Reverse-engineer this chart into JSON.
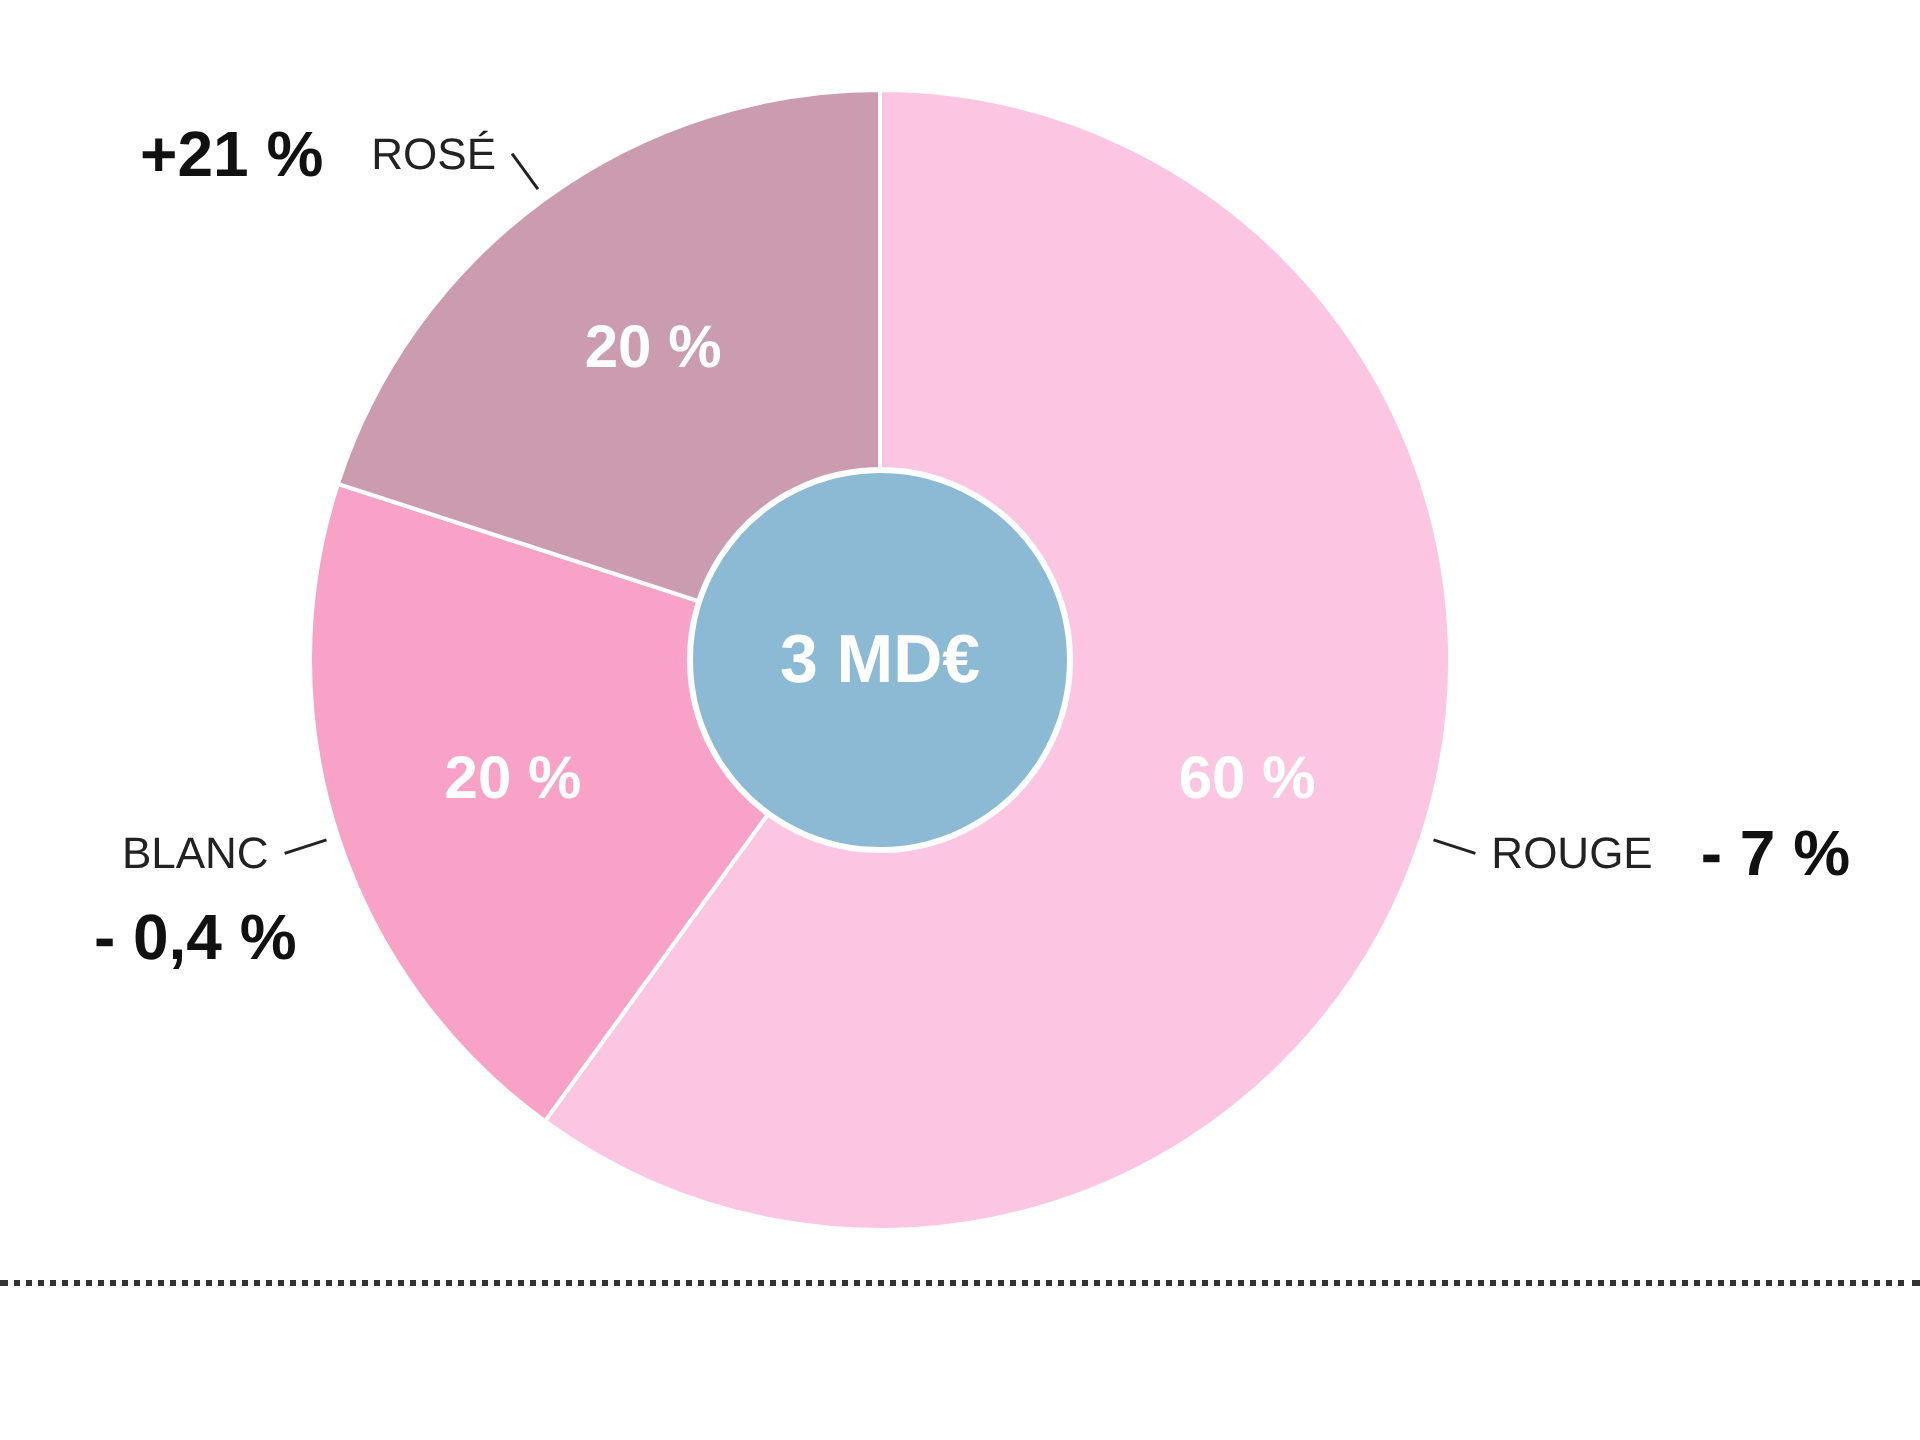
{
  "chart_data": {
    "type": "donut",
    "categories": [
      "ROUGE",
      "BLANC",
      "ROSÉ"
    ],
    "values": [
      60,
      20,
      20
    ],
    "colors": [
      "#fcc6e2",
      "#f8a2c8",
      "#cb9cb0"
    ],
    "value_labels": [
      "60 %",
      "20 %",
      "20 %"
    ],
    "annotations": [
      "3 MD€",
      {
        "text": "- 7 %",
        "x": "ROUGE"
      },
      {
        "text": "- 0,4 %",
        "x": "BLANC"
      },
      {
        "text": "+21 %",
        "x": "ROSÉ"
      }
    ]
  }
}
